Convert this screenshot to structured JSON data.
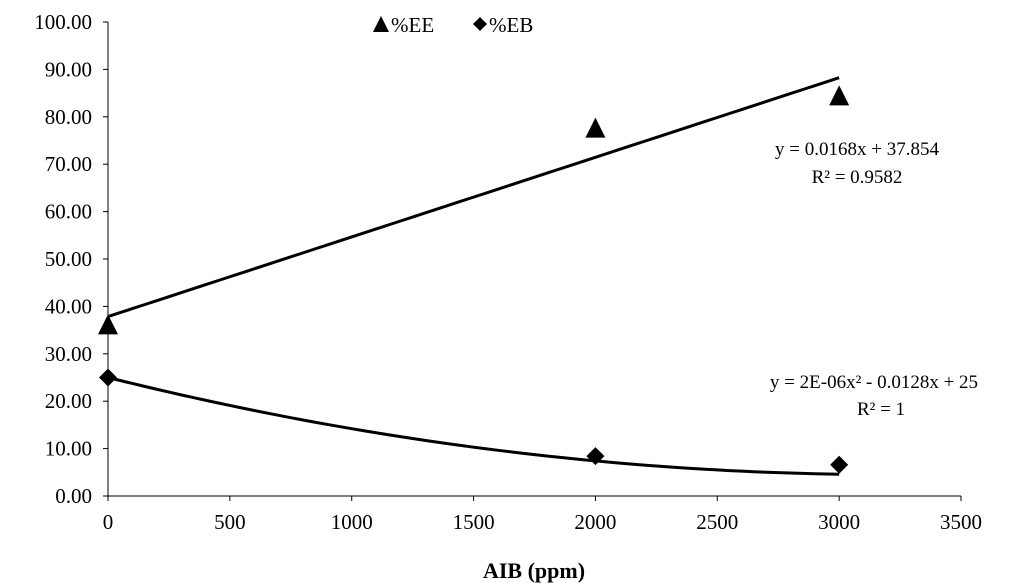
{
  "chart_data": {
    "type": "scatter",
    "title": "",
    "xlabel": "AIB (ppm)",
    "ylabel": "",
    "xlim": [
      0,
      3500
    ],
    "ylim": [
      0,
      100
    ],
    "x_ticks": [
      "0",
      "500",
      "1000",
      "1500",
      "2000",
      "2500",
      "3000",
      "3500"
    ],
    "y_ticks": [
      "0.00",
      "10.00",
      "20.00",
      "30.00",
      "40.00",
      "50.00",
      "60.00",
      "70.00",
      "80.00",
      "90.00",
      "100.00"
    ],
    "grid": false,
    "legend_position": "top-center",
    "series": [
      {
        "name": "%EE",
        "marker": "triangle",
        "color": "#000000",
        "x": [
          0,
          2000,
          3000
        ],
        "y": [
          36.0,
          77.5,
          84.3
        ],
        "trendline": {
          "type": "linear",
          "equation": "y = 0.0168x + 37.854",
          "r2": "R² = 0.9582",
          "slope": 0.0168,
          "intercept": 37.854
        }
      },
      {
        "name": "%EB",
        "marker": "diamond",
        "color": "#000000",
        "x": [
          0,
          2000,
          3000
        ],
        "y": [
          25.0,
          8.4,
          6.6
        ],
        "trendline": {
          "type": "polynomial",
          "equation": "y = 2E-06x² - 0.0128x + 25",
          "r2": "R² = 1",
          "a": 2e-06,
          "b": -0.0128,
          "c": 25
        }
      }
    ]
  }
}
